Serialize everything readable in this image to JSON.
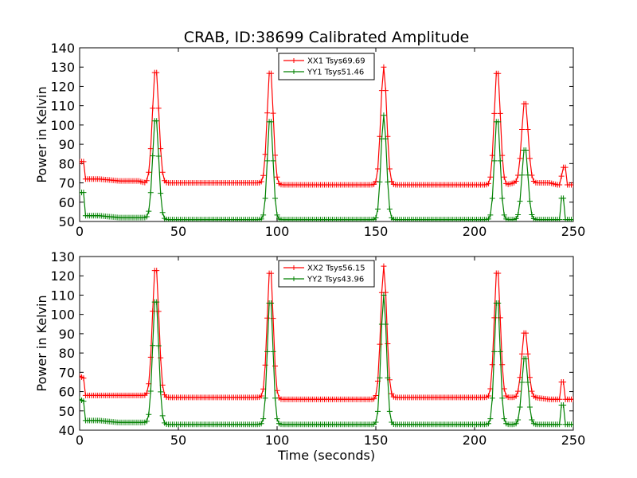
{
  "figure": {
    "title": "CRAB, ID:38699 Calibrated Amplitude",
    "xlabel": "Time (seconds)"
  },
  "chart_data": [
    {
      "type": "line",
      "ylabel": "Power in Kelvin",
      "xlim": [
        0,
        250
      ],
      "ylim": [
        50,
        140
      ],
      "xticks": [
        "0",
        "50",
        "100",
        "150",
        "200",
        "250"
      ],
      "yticks": [
        "50",
        "60",
        "70",
        "80",
        "90",
        "100",
        "110",
        "120",
        "130",
        "140"
      ],
      "legend_position": "top-center",
      "series": [
        {
          "name": "XX1 Tsys69.69",
          "color": "#ff0000",
          "baseline": [
            [
              0,
              81
            ],
            [
              2,
              81
            ],
            [
              3,
              72
            ],
            [
              10,
              72
            ],
            [
              20,
              71
            ],
            [
              30,
              71
            ],
            [
              33,
              70
            ],
            [
              43,
              70
            ],
            [
              60,
              70
            ],
            [
              80,
              70
            ],
            [
              92,
              70
            ],
            [
              100,
              69
            ],
            [
              120,
              69
            ],
            [
              140,
              69
            ],
            [
              150,
              69
            ],
            [
              158,
              69
            ],
            [
              180,
              69
            ],
            [
              200,
              69
            ],
            [
              207,
              69
            ],
            [
              216,
              69
            ],
            [
              220,
              70
            ],
            [
              230,
              70
            ],
            [
              238,
              70
            ],
            [
              242,
              69
            ],
            [
              243,
              69
            ],
            [
              245,
              78
            ],
            [
              246,
              78
            ],
            [
              247,
              69
            ],
            [
              250,
              69
            ]
          ],
          "peaks": [
            [
              38.5,
              130,
              1.6
            ],
            [
              96.5,
              130,
              1.5
            ],
            [
              154,
              130,
              1.5
            ],
            [
              211.5,
              130,
              1.5
            ],
            [
              225.5,
              113,
              1.6
            ]
          ]
        },
        {
          "name": "YY1 Tsys51.46",
          "color": "#008000",
          "baseline": [
            [
              0,
              65
            ],
            [
              2,
              65
            ],
            [
              3,
              53
            ],
            [
              10,
              53
            ],
            [
              20,
              52
            ],
            [
              30,
              52
            ],
            [
              33,
              52
            ],
            [
              43,
              51
            ],
            [
              60,
              51
            ],
            [
              80,
              51
            ],
            [
              92,
              51
            ],
            [
              100,
              51
            ],
            [
              120,
              51
            ],
            [
              140,
              51
            ],
            [
              150,
              51
            ],
            [
              158,
              51
            ],
            [
              180,
              51
            ],
            [
              200,
              51
            ],
            [
              207,
              51
            ],
            [
              216,
              51
            ],
            [
              220,
              51
            ],
            [
              230,
              51
            ],
            [
              238,
              51
            ],
            [
              242,
              51
            ],
            [
              243,
              51
            ],
            [
              244,
              62
            ],
            [
              245,
              62
            ],
            [
              246,
              51
            ],
            [
              250,
              51
            ]
          ],
          "peaks": [
            [
              38.5,
              105,
              1.5
            ],
            [
              96.5,
              105,
              1.4
            ],
            [
              154,
              105,
              1.4
            ],
            [
              211.5,
              105,
              1.4
            ],
            [
              225.5,
              89,
              1.5
            ]
          ]
        }
      ]
    },
    {
      "type": "line",
      "ylabel": "Power in Kelvin",
      "xlim": [
        0,
        250
      ],
      "ylim": [
        40,
        130
      ],
      "xticks": [
        "0",
        "50",
        "100",
        "150",
        "200",
        "250"
      ],
      "yticks": [
        "40",
        "50",
        "60",
        "70",
        "80",
        "90",
        "100",
        "110",
        "120",
        "130"
      ],
      "legend_position": "top-center",
      "series": [
        {
          "name": "XX2 Tsys56.15",
          "color": "#ff0000",
          "baseline": [
            [
              0,
              68
            ],
            [
              2,
              67
            ],
            [
              3,
              58
            ],
            [
              10,
              58
            ],
            [
              20,
              58
            ],
            [
              30,
              58
            ],
            [
              33,
              58
            ],
            [
              43,
              57
            ],
            [
              60,
              57
            ],
            [
              80,
              57
            ],
            [
              92,
              57
            ],
            [
              100,
              56
            ],
            [
              120,
              56
            ],
            [
              140,
              56
            ],
            [
              150,
              56
            ],
            [
              158,
              57
            ],
            [
              180,
              57
            ],
            [
              200,
              57
            ],
            [
              207,
              57
            ],
            [
              216,
              57
            ],
            [
              220,
              57
            ],
            [
              230,
              57
            ],
            [
              238,
              56
            ],
            [
              242,
              56
            ],
            [
              243,
              56
            ],
            [
              244,
              65
            ],
            [
              245,
              65
            ],
            [
              246,
              56
            ],
            [
              250,
              56
            ]
          ],
          "peaks": [
            [
              38.5,
              126,
              1.6
            ],
            [
              96.5,
              125,
              1.5
            ],
            [
              154,
              125,
              1.5
            ],
            [
              211.5,
              125,
              1.5
            ],
            [
              225.5,
              92,
              1.6
            ]
          ]
        },
        {
          "name": "YY2 Tsys43.96",
          "color": "#008000",
          "baseline": [
            [
              0,
              56
            ],
            [
              2,
              55
            ],
            [
              3,
              45
            ],
            [
              10,
              45
            ],
            [
              20,
              44
            ],
            [
              30,
              44
            ],
            [
              33,
              44
            ],
            [
              43,
              43
            ],
            [
              60,
              43
            ],
            [
              80,
              43
            ],
            [
              92,
              43
            ],
            [
              100,
              43
            ],
            [
              120,
              43
            ],
            [
              140,
              43
            ],
            [
              150,
              43
            ],
            [
              158,
              43
            ],
            [
              180,
              43
            ],
            [
              200,
              43
            ],
            [
              207,
              43
            ],
            [
              216,
              43
            ],
            [
              220,
              43
            ],
            [
              230,
              43
            ],
            [
              238,
              43
            ],
            [
              242,
              43
            ],
            [
              243,
              43
            ],
            [
              244,
              53
            ],
            [
              245,
              53
            ],
            [
              246,
              43
            ],
            [
              250,
              43
            ]
          ],
          "peaks": [
            [
              38.5,
              110,
              1.5
            ],
            [
              96.5,
              110,
              1.4
            ],
            [
              154,
              110,
              1.4
            ],
            [
              211.5,
              110,
              1.4
            ],
            [
              225.5,
              79,
              1.5
            ]
          ]
        }
      ]
    }
  ]
}
